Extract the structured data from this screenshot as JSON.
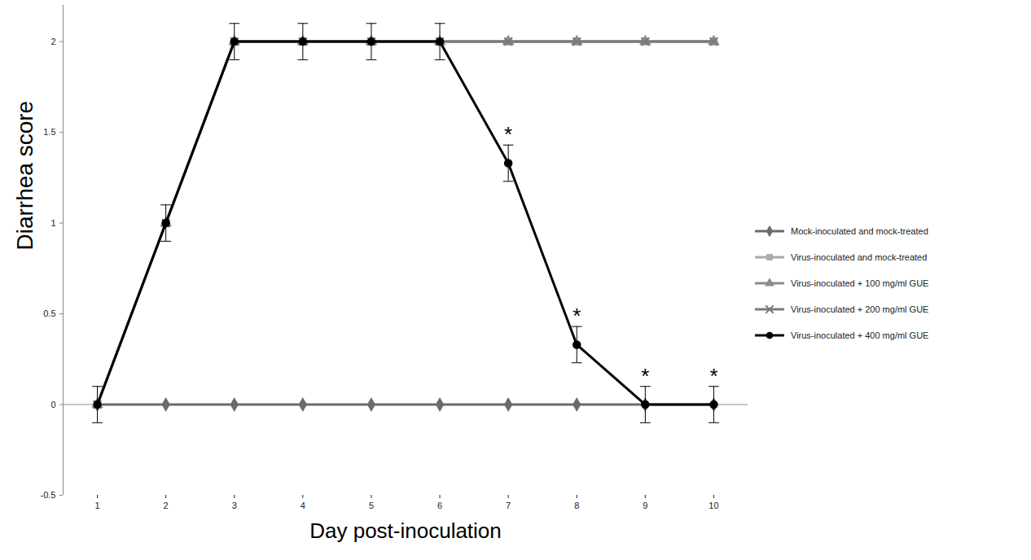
{
  "chart_data": {
    "type": "line",
    "x_label": "Day post-inoculation",
    "y_label": "Diarrhea score",
    "x": [
      1,
      2,
      3,
      4,
      5,
      6,
      7,
      8,
      9,
      10
    ],
    "xlim": [
      0.5,
      10.5
    ],
    "xticks": [
      1,
      2,
      3,
      4,
      5,
      6,
      7,
      8,
      9,
      10
    ],
    "ylim": [
      -0.5,
      2.2
    ],
    "yticks": [
      -0.5,
      0,
      0.5,
      1,
      1.5,
      2
    ],
    "grid": false,
    "legend": "right",
    "series": [
      {
        "name": "Mock-inoculated and mock-treated",
        "color": "#6b6b6b",
        "marker": "diamond",
        "values": [
          0,
          0,
          0,
          0,
          0,
          0,
          0,
          0,
          0,
          0
        ]
      },
      {
        "name": "Virus-inoculated and mock-treated",
        "color": "#a9a9a9",
        "marker": "square",
        "values": [
          0,
          1,
          2,
          2,
          2,
          2,
          2,
          2,
          2,
          2
        ]
      },
      {
        "name": "Virus-inoculated + 100 mg/ml GUE",
        "color": "#8c8c8c",
        "marker": "triangle",
        "values": [
          0,
          1,
          2,
          2,
          2,
          2,
          2,
          2,
          2,
          2
        ]
      },
      {
        "name": "Virus-inoculated + 200 mg/ml GUE",
        "color": "#7a7a7a",
        "marker": "times",
        "values": [
          0,
          1,
          2,
          2,
          2,
          2,
          2,
          2,
          2,
          2
        ]
      },
      {
        "name": "Virus-inoculated + 400 mg/ml GUE",
        "color": "#000000",
        "marker": "circle",
        "values": [
          0,
          1,
          2,
          2,
          2,
          2,
          1.33,
          0.33,
          0,
          0
        ],
        "errors": [
          0.1,
          0.1,
          0.1,
          0.1,
          0.1,
          0.1,
          0.1,
          0.1,
          0.1,
          0.1
        ]
      }
    ],
    "annotations": [
      {
        "text": "*",
        "x": 7,
        "series": "Virus-inoculated + 400 mg/ml GUE"
      },
      {
        "text": "*",
        "x": 8,
        "series": "Virus-inoculated + 400 mg/ml GUE"
      },
      {
        "text": "*",
        "x": 9,
        "series": "Virus-inoculated + 400 mg/ml GUE"
      },
      {
        "text": "*",
        "x": 10,
        "series": "Virus-inoculated + 400 mg/ml GUE"
      }
    ]
  }
}
